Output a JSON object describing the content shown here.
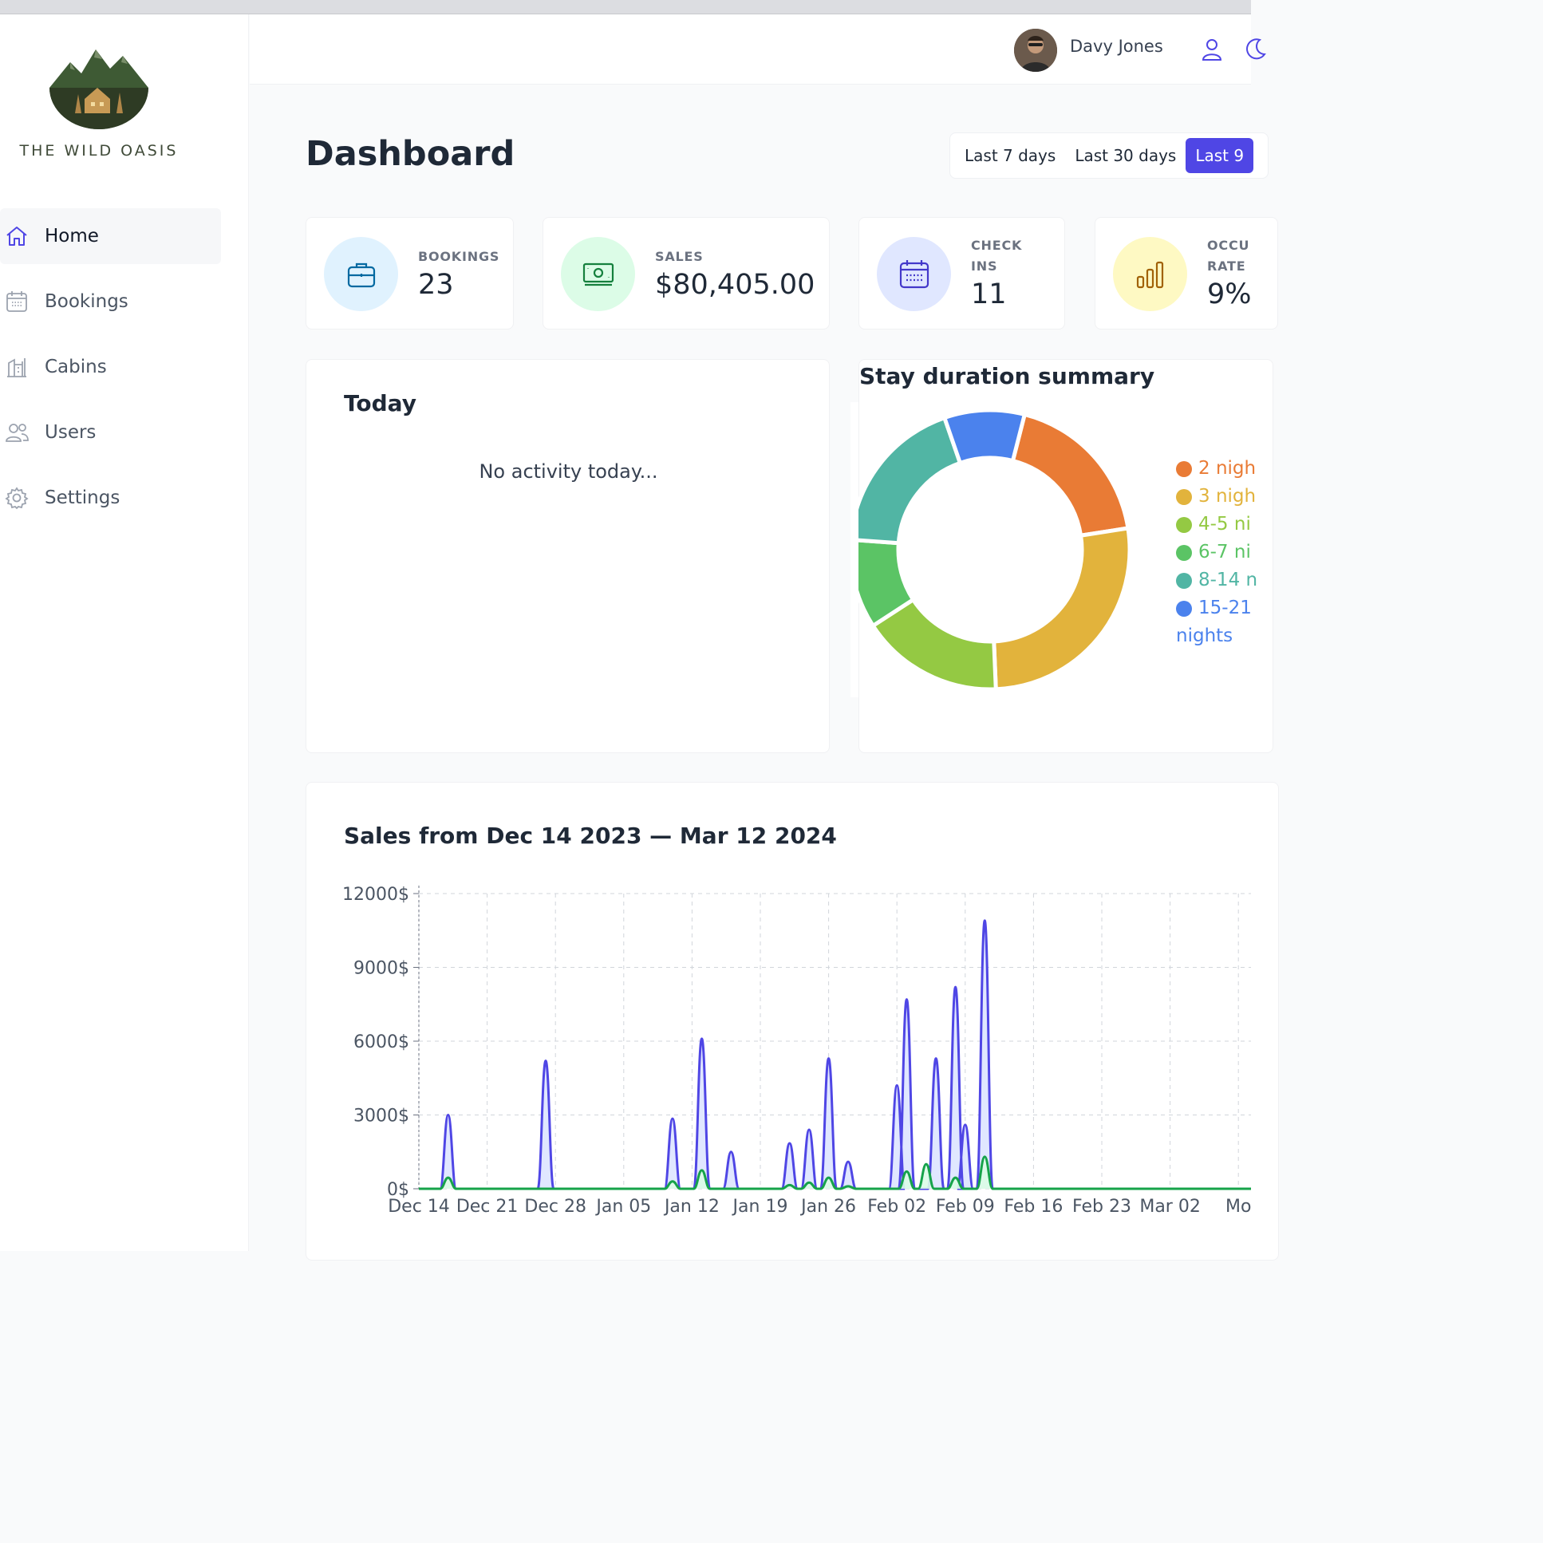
{
  "app": {
    "name": "THE WILD OASIS"
  },
  "user": {
    "name": "Davy Jones"
  },
  "nav": [
    {
      "label": "Home",
      "icon": "home-icon",
      "active": true
    },
    {
      "label": "Bookings",
      "icon": "calendar-icon"
    },
    {
      "label": "Cabins",
      "icon": "building-icon"
    },
    {
      "label": "Users",
      "icon": "users-icon"
    },
    {
      "label": "Settings",
      "icon": "gear-icon"
    }
  ],
  "page": {
    "title": "Dashboard"
  },
  "filters": [
    "Last 7 days",
    "Last 30 days",
    "Last 9"
  ],
  "stats": {
    "bookings": {
      "label": "BOOKINGS",
      "value": "23"
    },
    "sales": {
      "label": "SALES",
      "value": "$80,405.00"
    },
    "checkins": {
      "label_1": "CHECK",
      "label_2": "INS",
      "value": "11"
    },
    "occupancy": {
      "label_1": "OCCU",
      "label_2": "RATE",
      "value": "9%"
    }
  },
  "today": {
    "title": "Today",
    "empty": "No activity today..."
  },
  "stay": {
    "title": "Stay duration summary",
    "legend": [
      {
        "label": "2 nigh",
        "color": "#e97b35"
      },
      {
        "label": "3 nigh",
        "color": "#e2b33c"
      },
      {
        "label": "4-5 ni",
        "color": "#94c943"
      },
      {
        "label": "6-7 ni",
        "color": "#5bc465"
      },
      {
        "label": "8-14 n",
        "color": "#51b5a4"
      },
      {
        "label": "15-21",
        "label_2": "nights",
        "color": "#4b82ed"
      }
    ]
  },
  "sales_chart": {
    "title": "Sales from Dec 14 2023 — Mar 12 2024"
  },
  "chart_data": [
    {
      "type": "pie",
      "title": "Stay duration summary",
      "categories": [
        "2 nigh",
        "3 nigh",
        "4-5 ni",
        "6-7 ni",
        "8-14 n",
        "15-21 nights"
      ],
      "values": [
        18,
        26,
        16,
        10,
        18,
        9
      ],
      "colors": [
        "#e97b35",
        "#e2b33c",
        "#94c943",
        "#5bc465",
        "#51b5a4",
        "#4b82ed"
      ],
      "legend": "right"
    },
    {
      "type": "area",
      "title": "Sales from Dec 14 2023 — Mar 12 2024",
      "x_ticks": [
        "Dec 14",
        "Dec 21",
        "Dec 28",
        "Jan 05",
        "Jan 12",
        "Jan 19",
        "Jan 26",
        "Feb 02",
        "Feb 09",
        "Feb 16",
        "Feb 23",
        "Mar 02",
        "Mo"
      ],
      "y_ticks": [
        "0$",
        "3000$",
        "6000$",
        "9000$",
        "12000$"
      ],
      "ylim": [
        0,
        12000
      ],
      "grid": true,
      "series": [
        {
          "color": "#4f46e5",
          "fill": "#e0e7ff",
          "points": [
            [
              "Dec 17",
              3000
            ],
            [
              "Dec 27",
              5200
            ],
            [
              "Jan 09",
              2850
            ],
            [
              "Jan 12",
              6100
            ],
            [
              "Jan 15",
              1500
            ],
            [
              "Jan 21",
              1850
            ],
            [
              "Jan 23",
              2400
            ],
            [
              "Jan 25",
              5300
            ],
            [
              "Jan 27",
              1100
            ],
            [
              "Feb 01",
              4200
            ],
            [
              "Feb 02",
              7700
            ],
            [
              "Feb 05",
              5300
            ],
            [
              "Feb 07",
              8200
            ],
            [
              "Feb 08",
              2600
            ],
            [
              "Feb 10",
              10900
            ]
          ]
        },
        {
          "color": "#16a34a",
          "fill": "#dcfce7",
          "points": [
            [
              "Dec 17",
              450
            ],
            [
              "Jan 09",
              300
            ],
            [
              "Jan 12",
              750
            ],
            [
              "Jan 21",
              150
            ],
            [
              "Jan 23",
              250
            ],
            [
              "Jan 25",
              450
            ],
            [
              "Jan 27",
              100
            ],
            [
              "Feb 02",
              700
            ],
            [
              "Feb 04",
              1000
            ],
            [
              "Feb 07",
              450
            ],
            [
              "Feb 10",
              1300
            ]
          ]
        }
      ]
    }
  ]
}
